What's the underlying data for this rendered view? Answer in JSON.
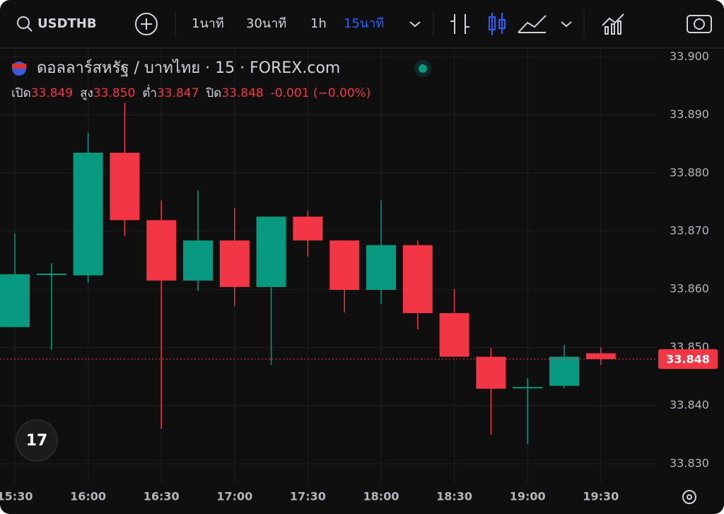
{
  "toolbar": {
    "symbol": "USDTHB",
    "intervals": [
      "1นาที",
      "30นาที",
      "1h",
      "15นาที"
    ]
  },
  "header": {
    "title": "ดอลลาร์สหรัฐ / บาทไทย · 15 · FOREX.com",
    "ohlc": [
      {
        "name": "เปิด",
        "value": "33.849"
      },
      {
        "name": "สูง",
        "value": "33.850"
      },
      {
        "name": "ต่ำ",
        "value": "33.847"
      },
      {
        "name": "ปิด",
        "value": "33.848"
      }
    ],
    "change": "-0.001 (−0.00%)"
  },
  "chart_data": {
    "type": "candlestick",
    "categories": [
      "15:30",
      null,
      "16:00",
      null,
      "16:30",
      null,
      "17:00",
      null,
      "17:30",
      null,
      "18:00",
      null,
      "18:30",
      null,
      "19:00",
      null,
      "19:30"
    ],
    "open": [
      33.8535,
      33.8626,
      33.8624,
      33.8835,
      33.8719,
      33.8615,
      33.8684,
      33.8604,
      33.8725,
      33.8684,
      33.8599,
      33.8676,
      33.8559,
      33.8484,
      33.8431,
      33.8434,
      33.849
    ],
    "high": [
      33.8696,
      33.8645,
      33.887,
      33.8921,
      33.8753,
      33.877,
      33.874,
      33.8725,
      33.8735,
      33.8684,
      33.8753,
      33.8684,
      33.86,
      33.8499,
      33.8447,
      33.8504,
      33.85
    ],
    "low": [
      33.8535,
      33.8496,
      33.8611,
      33.8691,
      33.836,
      33.8597,
      33.8571,
      33.847,
      33.8656,
      33.856,
      33.8575,
      33.8531,
      33.8484,
      33.835,
      33.8334,
      33.843,
      33.847
    ],
    "close": [
      33.8626,
      33.8627,
      33.8835,
      33.8719,
      33.8615,
      33.8684,
      33.8604,
      33.8725,
      33.8684,
      33.8599,
      33.8676,
      33.8559,
      33.8484,
      33.8429,
      33.8432,
      33.8484,
      33.848
    ],
    "up_color": "#089981",
    "down_color": "#f23645",
    "ylim": [
      33.8267,
      33.9015
    ],
    "yticks": [
      {
        "value": 33.83,
        "label": "33.830"
      },
      {
        "value": 33.84,
        "label": "33.840"
      },
      {
        "value": 33.85,
        "label": "33.850"
      },
      {
        "value": 33.86,
        "label": "33.860"
      },
      {
        "value": 33.87,
        "label": "33.870"
      },
      {
        "value": 33.88,
        "label": "33.880"
      },
      {
        "value": 33.89,
        "label": "33.890"
      },
      {
        "value": 33.9,
        "label": "33.900"
      }
    ],
    "grid": true,
    "last_price": 33.848
  }
}
